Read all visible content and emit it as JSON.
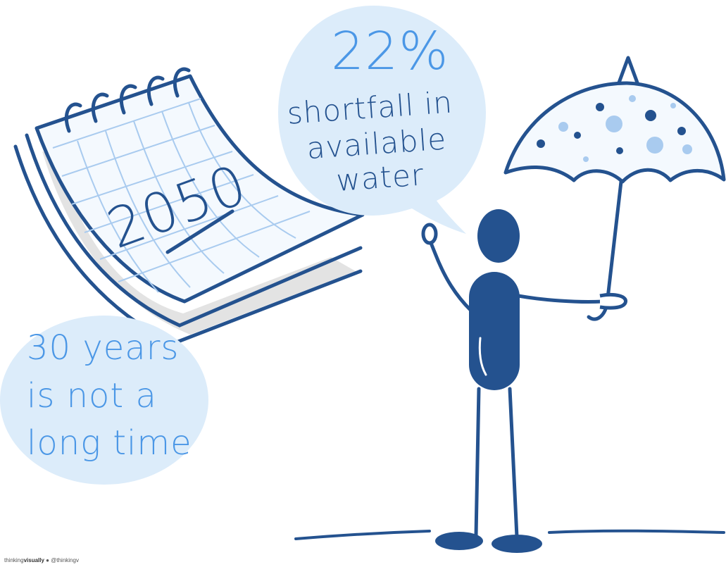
{
  "calendar": {
    "year": "2050"
  },
  "speech_bubble": {
    "stat": "22%",
    "line1": "shortfall in",
    "line2": "available",
    "line3": "water"
  },
  "caption_bubble": {
    "line1": "30 years",
    "line2": "is not a",
    "line3": "long time"
  },
  "credit": {
    "prefix": "thinking",
    "brand": "visually",
    "separator": "●",
    "handle": "@thinkingv"
  },
  "colors": {
    "navy": "#24528f",
    "accent_blue": "#4b97e6",
    "bubble_fill": "#dcecfa",
    "grid_blue": "#a9cbef",
    "shadow_gray": "#e3e3e3"
  }
}
